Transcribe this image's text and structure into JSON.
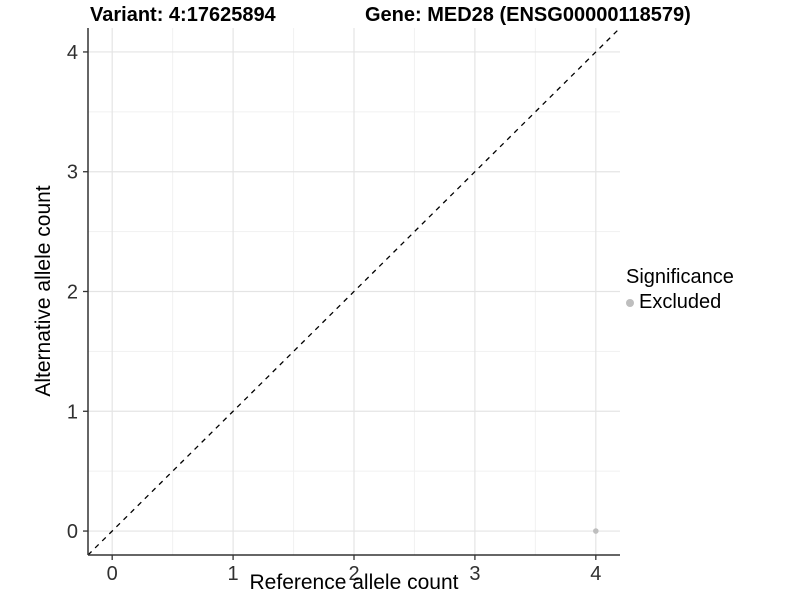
{
  "header": {
    "variant_title": "Variant: 4:17625894",
    "gene_title": "Gene: MED28 (ENSG00000118579)"
  },
  "chart_data": {
    "type": "scatter",
    "xlabel": "Reference allele count",
    "ylabel": "Alternative allele count",
    "xlim": [
      -0.2,
      4.2
    ],
    "ylim": [
      -0.2,
      4.2
    ],
    "x_ticks": [
      0,
      1,
      2,
      3,
      4
    ],
    "y_ticks": [
      0,
      1,
      2,
      3,
      4
    ],
    "x_minor_ticks": [
      0.5,
      1.5,
      2.5,
      3.5
    ],
    "y_minor_ticks": [
      0.5,
      1.5,
      2.5,
      3.5
    ],
    "grid": true,
    "background": "#ffffff",
    "reference_line": {
      "slope": 1,
      "intercept": 0,
      "style": "dashed",
      "color": "#000000"
    },
    "series": [
      {
        "name": "Excluded",
        "color": "#bebebe",
        "points": [
          {
            "x": 4,
            "y": 0
          }
        ]
      }
    ],
    "legend": {
      "title": "Significance",
      "position": "right",
      "items": [
        {
          "label": "Excluded",
          "color": "#bebebe"
        }
      ]
    },
    "colors": {
      "grid_major": "#e4e4e4",
      "grid_minor": "#f1f1f1",
      "axis_line": "#333333",
      "tick_label": "#303030"
    }
  }
}
